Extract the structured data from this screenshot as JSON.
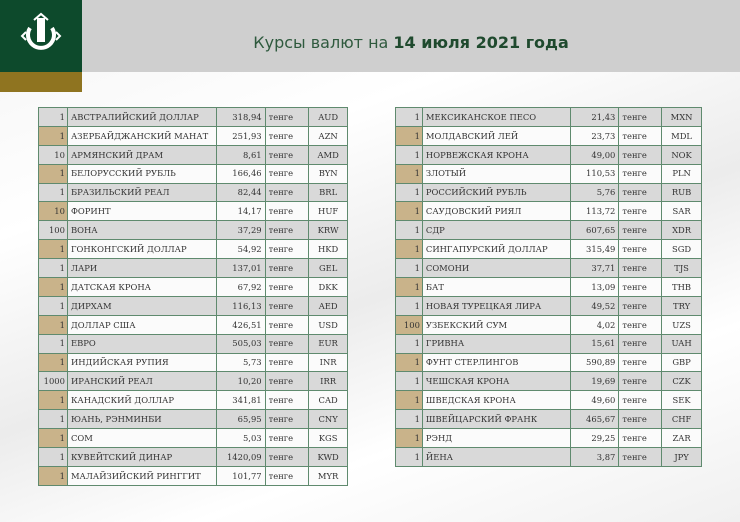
{
  "header": {
    "title_prefix": "Курсы валют на ",
    "title_date": "14 июля 2021 года",
    "logo_icon": "national-bank-kazakhstan-emblem",
    "brand_color": "#0d4a2c",
    "accent_color": "#8f7420"
  },
  "unit": "тенге",
  "left_table": [
    [
      "1",
      "АВСТРАЛИЙСКИЙ ДОЛЛАР",
      "318,94",
      "AUD"
    ],
    [
      "1",
      "АЗЕРБАЙДЖАНСКИЙ МАНАТ",
      "251,93",
      "AZN"
    ],
    [
      "10",
      "АРМЯНСКИЙ  ДРАМ",
      "8,61",
      "AMD"
    ],
    [
      "1",
      "БЕЛОРУССКИЙ РУБЛЬ",
      "166,46",
      "BYN"
    ],
    [
      "1",
      "БРАЗИЛЬСКИЙ РЕАЛ",
      "82,44",
      "BRL"
    ],
    [
      "10",
      "ФОРИНТ",
      "14,17",
      "HUF"
    ],
    [
      "100",
      "ВОНА",
      "37,29",
      "KRW"
    ],
    [
      "1",
      "ГОНКОНГСКИЙ ДОЛЛАР",
      "54,92",
      "HKD"
    ],
    [
      "1",
      "ЛАРИ",
      "137,01",
      "GEL"
    ],
    [
      "1",
      "ДАТСКАЯ КРОНА",
      "67,92",
      "DKK"
    ],
    [
      "1",
      "ДИРХАМ",
      "116,13",
      "AED"
    ],
    [
      "1",
      "ДОЛЛАР США",
      "426,51",
      "USD"
    ],
    [
      "1",
      "ЕВРО",
      "505,03",
      "EUR"
    ],
    [
      "1",
      "ИНДИЙСКАЯ РУПИЯ",
      "5,73",
      "INR"
    ],
    [
      "1000",
      "ИРАНСКИЙ РЕАЛ",
      "10,20",
      "IRR"
    ],
    [
      "1",
      "КАНАДСКИЙ ДОЛЛАР",
      "341,81",
      "CAD"
    ],
    [
      "1",
      "ЮАНЬ, РЭНМИНБИ",
      "65,95",
      "CNY"
    ],
    [
      "1",
      "СОМ",
      "5,03",
      "KGS"
    ],
    [
      "1",
      "КУВЕЙТСКИЙ ДИНАР",
      "1420,09",
      "KWD"
    ],
    [
      "1",
      "МАЛАЙЗИЙСКИЙ РИНГГИТ",
      "101,77",
      "MYR"
    ]
  ],
  "right_table": [
    [
      "1",
      "МЕКСИКАНСКОЕ ПЕСО",
      "21,43",
      "MXN"
    ],
    [
      "1",
      "МОЛДАВСКИЙ ЛЕЙ",
      "23,73",
      "MDL"
    ],
    [
      "1",
      "НОРВЕЖСКАЯ КРОНА",
      "49,00",
      "NOK"
    ],
    [
      "1",
      "ЗЛОТЫЙ",
      "110,53",
      "PLN"
    ],
    [
      "1",
      "РОССИЙСКИЙ РУБЛЬ",
      "5,76",
      "RUB"
    ],
    [
      "1",
      "САУДОВСКИЙ РИЯЛ",
      "113,72",
      "SAR"
    ],
    [
      "1",
      "СДР",
      "607,65",
      "XDR"
    ],
    [
      "1",
      "СИНГАПУРСКИЙ ДОЛЛАР",
      "315,49",
      "SGD"
    ],
    [
      "1",
      "СОМОНИ",
      "37,71",
      "TJS"
    ],
    [
      "1",
      "БАТ",
      "13,09",
      "THB"
    ],
    [
      "1",
      "НОВАЯ ТУРЕЦКАЯ ЛИРА",
      "49,52",
      "TRY"
    ],
    [
      "100",
      "УЗБЕКСКИЙ СУМ",
      "4,02",
      "UZS"
    ],
    [
      "1",
      "ГРИВНА",
      "15,61",
      "UAH"
    ],
    [
      "1",
      "ФУНТ СТЕРЛИНГОВ",
      "590,89",
      "GBP"
    ],
    [
      "1",
      "ЧЕШСКАЯ КРОНА",
      "19,69",
      "CZK"
    ],
    [
      "1",
      "ШВЕДСКАЯ КРОНА",
      "49,60",
      "SEK"
    ],
    [
      "1",
      "ШВЕЙЦАРСКИЙ ФРАНК",
      "465,67",
      "CHF"
    ],
    [
      "1",
      "РЭНД",
      "29,25",
      "ZAR"
    ],
    [
      "1",
      "ЙЕНА",
      "3,87",
      "JPY"
    ]
  ]
}
